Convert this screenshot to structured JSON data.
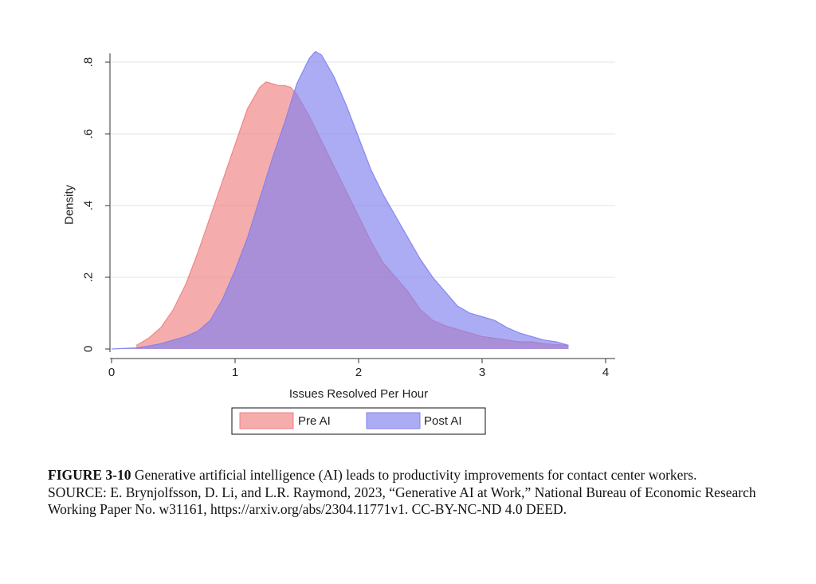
{
  "chart_data": {
    "type": "area",
    "xlabel": "Issues Resolved Per Hour",
    "ylabel": "Density",
    "xlim": [
      0,
      4
    ],
    "ylim": [
      0,
      0.85
    ],
    "x_ticks": [
      0,
      1,
      2,
      3,
      4
    ],
    "x_tick_labels": [
      "0",
      "1",
      "2",
      "3",
      "4"
    ],
    "y_ticks": [
      0,
      0.2,
      0.4,
      0.6,
      0.8
    ],
    "y_tick_labels": [
      "0",
      ".2",
      ".4",
      ".6",
      ".8"
    ],
    "grid": "horizontal",
    "legend_position": "bottom",
    "series": [
      {
        "name": "Pre AI",
        "color": "#f08080",
        "x": [
          0.2,
          0.3,
          0.4,
          0.5,
          0.6,
          0.7,
          0.8,
          0.9,
          1.0,
          1.1,
          1.2,
          1.25,
          1.3,
          1.35,
          1.4,
          1.45,
          1.5,
          1.6,
          1.7,
          1.8,
          1.9,
          2.0,
          2.1,
          2.2,
          2.3,
          2.4,
          2.5,
          2.6,
          2.7,
          2.8,
          2.9,
          3.0,
          3.1,
          3.2,
          3.3,
          3.4,
          3.5,
          3.6,
          3.7
        ],
        "y": [
          0.01,
          0.03,
          0.06,
          0.11,
          0.18,
          0.27,
          0.37,
          0.47,
          0.57,
          0.67,
          0.73,
          0.745,
          0.74,
          0.735,
          0.735,
          0.73,
          0.71,
          0.65,
          0.58,
          0.51,
          0.44,
          0.37,
          0.3,
          0.24,
          0.2,
          0.16,
          0.11,
          0.08,
          0.065,
          0.055,
          0.045,
          0.035,
          0.03,
          0.025,
          0.02,
          0.02,
          0.015,
          0.012,
          0.01
        ]
      },
      {
        "name": "Post AI",
        "color": "#8080f0",
        "x": [
          0.0,
          0.2,
          0.3,
          0.4,
          0.5,
          0.6,
          0.7,
          0.8,
          0.9,
          1.0,
          1.1,
          1.2,
          1.3,
          1.4,
          1.5,
          1.6,
          1.65,
          1.7,
          1.8,
          1.9,
          2.0,
          2.1,
          2.2,
          2.3,
          2.4,
          2.5,
          2.6,
          2.7,
          2.8,
          2.9,
          3.0,
          3.1,
          3.2,
          3.3,
          3.4,
          3.5,
          3.6,
          3.7
        ],
        "y": [
          0.0,
          0.003,
          0.008,
          0.015,
          0.025,
          0.035,
          0.05,
          0.08,
          0.14,
          0.22,
          0.31,
          0.42,
          0.53,
          0.63,
          0.74,
          0.81,
          0.83,
          0.82,
          0.76,
          0.68,
          0.59,
          0.5,
          0.43,
          0.37,
          0.31,
          0.25,
          0.2,
          0.16,
          0.12,
          0.1,
          0.09,
          0.08,
          0.06,
          0.045,
          0.035,
          0.025,
          0.02,
          0.01
        ]
      }
    ]
  },
  "caption": {
    "figure_label": "FIGURE 3-10",
    "figure_text": " Generative artificial intelligence (AI) leads to productivity improvements for contact center workers.",
    "source": "SOURCE: E. Brynjolfsson, D. Li, and L.R. Raymond, 2023, “Generative AI at Work,” National Bureau of Economic Research Working Paper No. w31161, https://arxiv.org/abs/2304.11771v1. CC-BY-NC-ND 4.0 DEED."
  }
}
